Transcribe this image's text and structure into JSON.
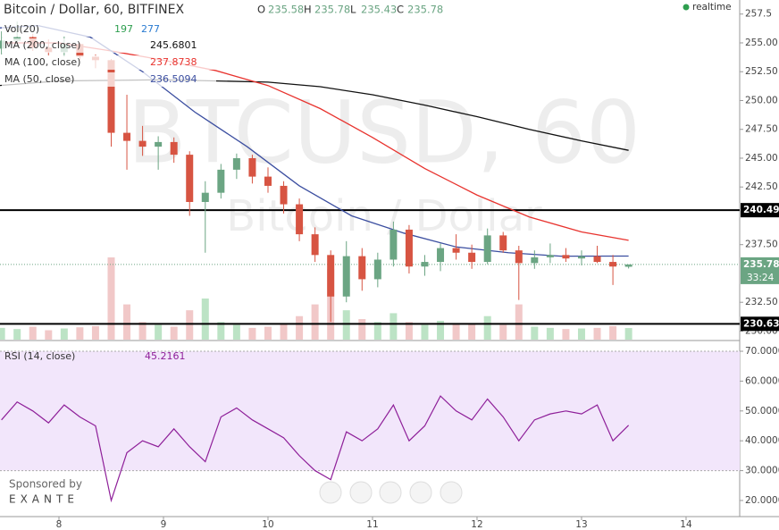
{
  "chart_data": {
    "type": "candlestick",
    "title": "Bitcoin / Dollar, 60, BITFINEX",
    "ohlc_legend": {
      "labels": [
        "O",
        "H",
        "L",
        "C"
      ],
      "values": [
        235.58,
        235.78,
        235.43,
        235.78
      ]
    },
    "status": "realtime",
    "watermark": [
      "BTCUSD, 60",
      "Bitcoin / Dollar"
    ],
    "up_color": "#6ba583",
    "down_color": "#d75442",
    "x": [
      7.45,
      7.6,
      7.75,
      7.9,
      8.05,
      8.2,
      8.35,
      8.5,
      8.65,
      8.8,
      8.95,
      9.1,
      9.25,
      9.4,
      9.55,
      9.7,
      9.85,
      10.0,
      10.15,
      10.3,
      10.45,
      10.6,
      10.75,
      10.9,
      11.05,
      11.2,
      11.35,
      11.5,
      11.65,
      11.8,
      11.95,
      12.1,
      12.25,
      12.4,
      12.55,
      12.7,
      12.85,
      13.0,
      13.15,
      13.3,
      13.45
    ],
    "open": [
      254.5,
      255.2,
      255.5,
      254.6,
      254.2,
      254.9,
      253.8,
      253.5,
      247.2,
      246.5,
      246.0,
      246.4,
      245.3,
      241.2,
      242.0,
      244.0,
      245.0,
      243.4,
      242.6,
      241.0,
      238.4,
      236.6,
      233.0,
      236.5,
      234.5,
      236.2,
      238.8,
      235.6,
      236.0,
      237.2,
      236.8,
      236.0,
      238.3,
      237.0,
      235.9,
      236.4,
      236.6,
      236.3,
      236.5,
      236.0,
      235.58
    ],
    "high": [
      256.0,
      256.8,
      255.8,
      255.3,
      255.6,
      255.0,
      254.0,
      253.6,
      250.5,
      247.8,
      246.9,
      246.8,
      245.6,
      243.0,
      244.5,
      245.4,
      245.3,
      244.2,
      243.0,
      241.5,
      239.0,
      237.0,
      237.8,
      237.2,
      236.8,
      239.5,
      239.2,
      236.6,
      237.6,
      238.4,
      237.5,
      238.9,
      238.6,
      237.4,
      237.0,
      237.6,
      237.2,
      237.0,
      237.4,
      236.6,
      235.78
    ],
    "low": [
      254.0,
      254.8,
      254.3,
      253.9,
      253.8,
      253.5,
      252.8,
      246.0,
      244.0,
      245.2,
      244.0,
      244.6,
      240.0,
      236.8,
      241.5,
      243.2,
      242.8,
      242.0,
      240.2,
      237.8,
      236.0,
      230.8,
      232.5,
      233.5,
      233.8,
      235.6,
      235.0,
      234.8,
      235.2,
      236.2,
      235.4,
      235.8,
      236.8,
      232.7,
      235.4,
      235.9,
      236.0,
      235.7,
      235.9,
      234.0,
      235.43
    ],
    "close": [
      255.2,
      255.5,
      254.6,
      254.2,
      254.9,
      253.8,
      253.5,
      247.2,
      246.5,
      246.0,
      246.4,
      245.3,
      241.2,
      242.0,
      244.0,
      245.0,
      243.4,
      242.6,
      241.0,
      238.4,
      236.6,
      233.0,
      236.5,
      234.5,
      236.2,
      238.8,
      235.6,
      236.0,
      237.2,
      236.8,
      236.0,
      238.3,
      237.0,
      235.9,
      236.4,
      236.6,
      236.3,
      236.5,
      236.0,
      235.6,
      235.78
    ],
    "volume_name": "Vol(20)",
    "volume": [
      200,
      180,
      220,
      160,
      190,
      210,
      230,
      1400,
      600,
      300,
      250,
      220,
      500,
      700,
      300,
      250,
      200,
      220,
      260,
      400,
      600,
      1200,
      500,
      350,
      300,
      450,
      300,
      250,
      320,
      280,
      260,
      400,
      250,
      600,
      220,
      200,
      180,
      190,
      200,
      230,
      197
    ],
    "volume_ma": 277,
    "ma": [
      {
        "name": "MA (200, close)",
        "color": "#111111",
        "x": [
          7.43,
          8.0,
          9.0,
          10.0,
          10.5,
          11.0,
          11.5,
          12.0,
          12.5,
          13.0,
          13.45
        ],
        "values": [
          251.3,
          251.7,
          251.8,
          251.6,
          251.2,
          250.5,
          249.6,
          248.6,
          247.5,
          246.5,
          245.6801
        ]
      },
      {
        "name": "MA (100, close)",
        "color": "#e8332e",
        "x": [
          7.43,
          8.0,
          8.5,
          9.0,
          9.5,
          10.0,
          10.5,
          11.0,
          11.5,
          12.0,
          12.5,
          13.0,
          13.45
        ],
        "values": [
          255.0,
          255.0,
          254.3,
          253.5,
          252.6,
          251.3,
          249.3,
          246.8,
          244.1,
          241.8,
          239.9,
          238.6,
          237.8738
        ]
      },
      {
        "name": "MA (50, close)",
        "color": "#3b4ea0",
        "x": [
          7.43,
          7.8,
          8.3,
          8.8,
          9.3,
          9.8,
          10.3,
          10.8,
          11.3,
          11.8,
          12.3,
          12.8,
          13.45
        ],
        "values": [
          256.3,
          256.5,
          255.5,
          252.5,
          249.0,
          246.0,
          242.6,
          240.0,
          238.5,
          237.3,
          236.8,
          236.5,
          236.5094
        ]
      }
    ],
    "hlines": [
      240.49,
      230.63
    ],
    "last_price": 235.78,
    "countdown": "33:24",
    "xlim": [
      7.436,
      14.513
    ],
    "xticks": [
      8,
      9,
      10,
      11,
      12,
      13,
      14
    ],
    "ylim": [
      229.26,
      258.72
    ],
    "yticks": [
      {
        "value": 230,
        "label": "230.00"
      },
      {
        "value": 232.5,
        "label": "232.50"
      },
      {
        "value": 237.5,
        "label": "237.50"
      },
      {
        "value": 242.5,
        "label": "242.50"
      },
      {
        "value": 245,
        "label": "245.00"
      },
      {
        "value": 247.5,
        "label": "247.50"
      },
      {
        "value": 250,
        "label": "250.00"
      },
      {
        "value": 252.5,
        "label": "252.50"
      },
      {
        "value": 255,
        "label": "255.00"
      },
      257.5
    ],
    "rsi": {
      "name": "RSI (14, close)",
      "color": "#8e1f99",
      "values": [
        47,
        53,
        50,
        46,
        52,
        48,
        45,
        20,
        36,
        40,
        38,
        44,
        38,
        33,
        48,
        51,
        47,
        44,
        41,
        35,
        30,
        27,
        43,
        40,
        44,
        52,
        40,
        45,
        55,
        50,
        47,
        54,
        48,
        40,
        47,
        49,
        50,
        49,
        52,
        40,
        45.2161
      ],
      "ylim": [
        14.9,
        73
      ],
      "yticks": [
        {
          "value": 20,
          "label": "20.0000"
        },
        {
          "value": 30,
          "label": "30.0000"
        },
        {
          "value": 40,
          "label": "40.0000"
        },
        {
          "value": 50,
          "label": "50.0000"
        },
        {
          "value": 60,
          "label": "60.0000"
        },
        {
          "value": 70,
          "label": "70.0000"
        }
      ],
      "band": [
        30,
        70
      ]
    },
    "sponsor": [
      "Sponsored by",
      "EXANTE"
    ]
  }
}
